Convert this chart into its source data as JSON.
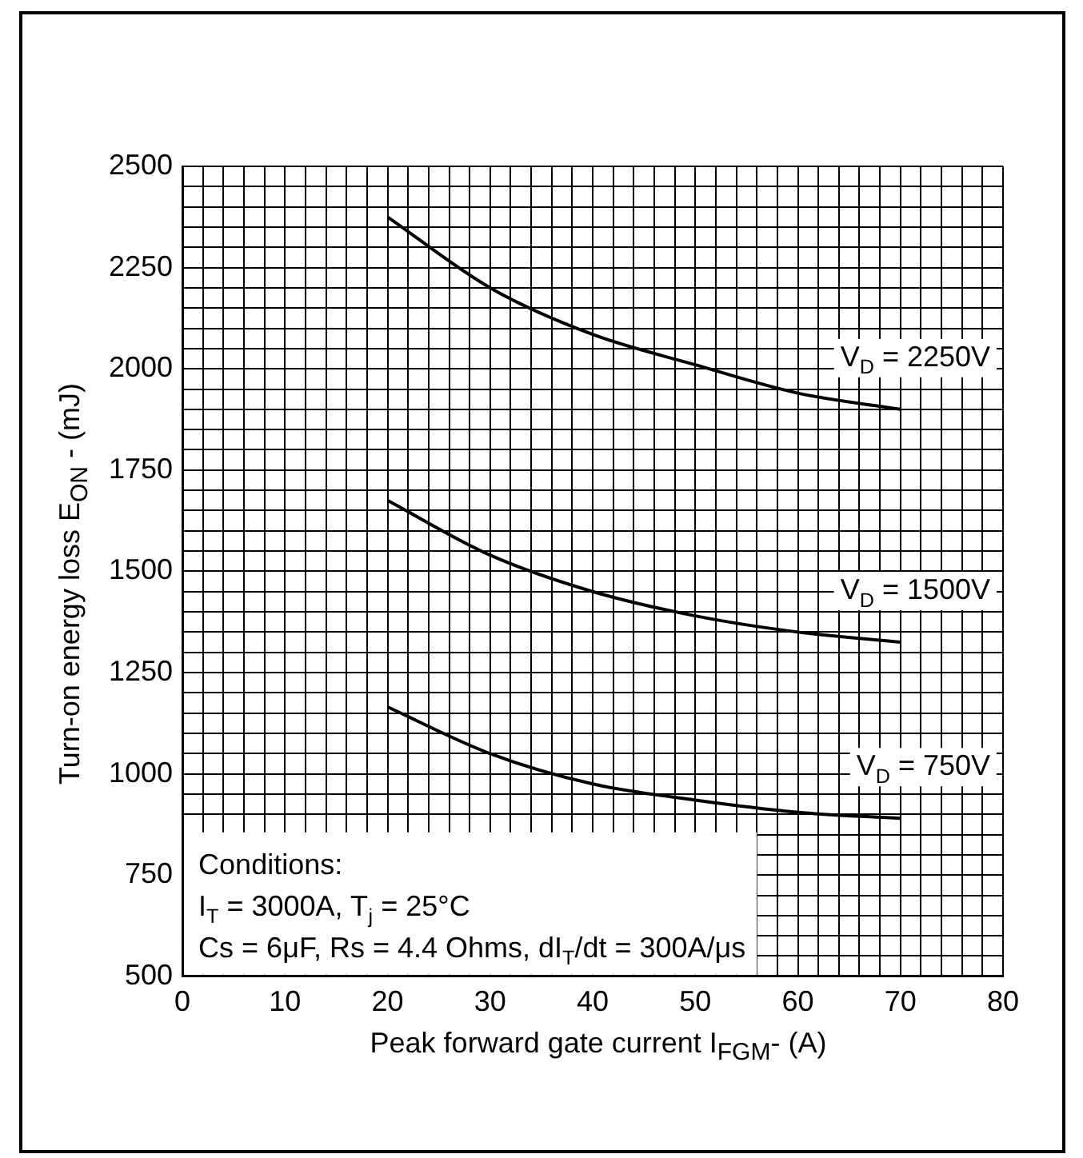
{
  "chart_data": {
    "type": "line",
    "xlabel": "Peak forward gate current  I$_{FGM}$- (A)",
    "ylabel": "Turn-on energy loss E$_{ON}$ - (mJ)",
    "xlim": [
      0,
      80
    ],
    "ylim": [
      500,
      2500
    ],
    "xticks": [
      0,
      {
        "value": 2,
        "label": null
      },
      {
        "value": 4,
        "label": null
      },
      {
        "value": 6,
        "label": null
      },
      {
        "value": 8,
        "label": null
      },
      10,
      {
        "value": 12,
        "label": null
      },
      {
        "value": 14,
        "label": null
      },
      {
        "value": 16,
        "label": null
      },
      {
        "value": 18,
        "label": null
      },
      20,
      {
        "value": 22,
        "label": null
      },
      {
        "value": 24,
        "label": null
      },
      {
        "value": 26,
        "label": null
      },
      {
        "value": 28,
        "label": null
      },
      30,
      {
        "value": 32,
        "label": null
      },
      {
        "value": 34,
        "label": null
      },
      {
        "value": 36,
        "label": null
      },
      {
        "value": 38,
        "label": null
      },
      40,
      {
        "value": 42,
        "label": null
      },
      {
        "value": 44,
        "label": null
      },
      {
        "value": 46,
        "label": null
      },
      {
        "value": 48,
        "label": null
      },
      50,
      {
        "value": 52,
        "label": null
      },
      {
        "value": 54,
        "label": null
      },
      {
        "value": 56,
        "label": null
      },
      {
        "value": 58,
        "label": null
      },
      60,
      {
        "value": 62,
        "label": null
      },
      {
        "value": 64,
        "label": null
      },
      {
        "value": 66,
        "label": null
      },
      {
        "value": 68,
        "label": null
      },
      70,
      {
        "value": 72,
        "label": null
      },
      {
        "value": 74,
        "label": null
      },
      {
        "value": 76,
        "label": null
      },
      {
        "value": 78,
        "label": null
      },
      80
    ],
    "yticks": [
      500,
      {
        "value": 550,
        "label": null
      },
      {
        "value": 600,
        "label": null
      },
      {
        "value": 650,
        "label": null
      },
      {
        "value": 700,
        "label": null
      },
      750,
      {
        "value": 800,
        "label": null
      },
      {
        "value": 850,
        "label": null
      },
      {
        "value": 900,
        "label": null
      },
      {
        "value": 950,
        "label": null
      },
      1000,
      {
        "value": 1050,
        "label": null
      },
      {
        "value": 1100,
        "label": null
      },
      {
        "value": 1150,
        "label": null
      },
      {
        "value": 1200,
        "label": null
      },
      1250,
      {
        "value": 1300,
        "label": null
      },
      {
        "value": 1350,
        "label": null
      },
      {
        "value": 1400,
        "label": null
      },
      {
        "value": 1450,
        "label": null
      },
      1500,
      {
        "value": 1550,
        "label": null
      },
      {
        "value": 1600,
        "label": null
      },
      {
        "value": 1650,
        "label": null
      },
      {
        "value": 1700,
        "label": null
      },
      1750,
      {
        "value": 1800,
        "label": null
      },
      {
        "value": 1850,
        "label": null
      },
      {
        "value": 1900,
        "label": null
      },
      {
        "value": 1950,
        "label": null
      },
      2000,
      {
        "value": 2050,
        "label": null
      },
      {
        "value": 2100,
        "label": null
      },
      {
        "value": 2150,
        "label": null
      },
      {
        "value": 2200,
        "label": null
      },
      2250,
      {
        "value": 2300,
        "label": null
      },
      {
        "value": 2350,
        "label": null
      },
      {
        "value": 2400,
        "label": null
      },
      {
        "value": 2450,
        "label": null
      },
      2500
    ],
    "grid": true,
    "legend": false,
    "marker": "none",
    "line_style": "solid",
    "x": [
      20,
      30,
      40,
      50,
      60,
      70
    ],
    "series": [
      {
        "name": "V$_{D}$ = 2250V",
        "color": "#000000",
        "values": [
          2375,
          2200,
          2085,
          2010,
          1940,
          1900
        ]
      },
      {
        "name": "V$_{D}$ = 1500V",
        "color": "#000000",
        "values": [
          1675,
          1540,
          1450,
          1390,
          1350,
          1325
        ]
      },
      {
        "name": "V$_{D}$ = 750V",
        "color": "#000000",
        "values": [
          1165,
          1050,
          975,
          935,
          905,
          890
        ]
      }
    ],
    "annotations": [
      "Conditions:",
      "I$_{T}$ = 3000A, T$_{j}$ = 25°C",
      "Cs = 6μF, Rs = 4.4 Ohms, dI$_{T}$/dt = 300A/μs"
    ]
  }
}
